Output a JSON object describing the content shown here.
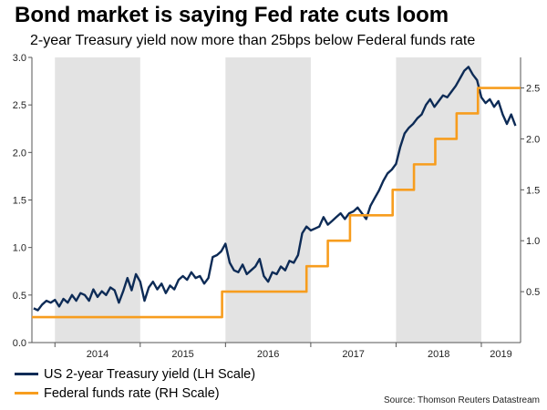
{
  "title": "Bond market is saying Fed rate cuts loom",
  "subtitle": "2-year Treasury yield now more than 25bps below Federal funds rate",
  "source": "Source: Thomson Reuters Datastream",
  "colors": {
    "yield": "#0d2b56",
    "fed": "#f79d1e",
    "shade": "#e3e3e3",
    "axis": "#555555"
  },
  "legend": [
    {
      "label": "US 2-year Treasury yield (LH Scale)",
      "series": "yield"
    },
    {
      "label": "Federal funds rate (RH Scale)",
      "series": "fed"
    }
  ],
  "chart_data": {
    "type": "line",
    "xlim": [
      2013.73,
      2019.46
    ],
    "ylim_left": [
      0,
      3.0
    ],
    "ylim_right": [
      0,
      2.8
    ],
    "yticks_left": [
      "0.0",
      "0.5",
      "1.0",
      "1.5",
      "2.0",
      "2.5",
      "3.0"
    ],
    "yticks_right": [
      "0.5",
      "1.0",
      "1.5",
      "2.0",
      "2.5"
    ],
    "year_labels": [
      "2014",
      "2015",
      "2016",
      "2017",
      "2018",
      "2019"
    ],
    "shaded_years": [
      2014,
      2016,
      2018
    ],
    "grid": false,
    "series": [
      {
        "name": "US 2-year Treasury yield (LH Scale)",
        "axis": "left",
        "x": [
          2013.75,
          2013.8,
          2013.85,
          2013.9,
          2013.95,
          2014.0,
          2014.05,
          2014.1,
          2014.15,
          2014.2,
          2014.25,
          2014.3,
          2014.35,
          2014.4,
          2014.45,
          2014.5,
          2014.55,
          2014.6,
          2014.65,
          2014.7,
          2014.75,
          2014.8,
          2014.85,
          2014.9,
          2014.95,
          2015.0,
          2015.05,
          2015.1,
          2015.15,
          2015.2,
          2015.25,
          2015.3,
          2015.35,
          2015.4,
          2015.45,
          2015.5,
          2015.55,
          2015.6,
          2015.65,
          2015.7,
          2015.75,
          2015.8,
          2015.85,
          2015.9,
          2015.95,
          2016.0,
          2016.05,
          2016.1,
          2016.15,
          2016.2,
          2016.25,
          2016.3,
          2016.35,
          2016.4,
          2016.45,
          2016.5,
          2016.55,
          2016.6,
          2016.65,
          2016.7,
          2016.75,
          2016.8,
          2016.85,
          2016.9,
          2016.95,
          2017.0,
          2017.05,
          2017.1,
          2017.15,
          2017.2,
          2017.25,
          2017.3,
          2017.35,
          2017.4,
          2017.45,
          2017.5,
          2017.55,
          2017.6,
          2017.65,
          2017.7,
          2017.75,
          2017.8,
          2017.85,
          2017.9,
          2017.95,
          2018.0,
          2018.05,
          2018.1,
          2018.15,
          2018.2,
          2018.25,
          2018.3,
          2018.35,
          2018.4,
          2018.45,
          2018.5,
          2018.55,
          2018.6,
          2018.65,
          2018.7,
          2018.75,
          2018.8,
          2018.85,
          2018.9,
          2018.95,
          2019.0,
          2019.05,
          2019.1,
          2019.15,
          2019.2,
          2019.25,
          2019.3,
          2019.35,
          2019.4
        ],
        "values": [
          0.36,
          0.34,
          0.4,
          0.44,
          0.42,
          0.45,
          0.38,
          0.46,
          0.42,
          0.5,
          0.44,
          0.52,
          0.5,
          0.44,
          0.56,
          0.48,
          0.54,
          0.5,
          0.58,
          0.55,
          0.42,
          0.54,
          0.68,
          0.55,
          0.72,
          0.64,
          0.44,
          0.58,
          0.64,
          0.56,
          0.62,
          0.52,
          0.6,
          0.56,
          0.66,
          0.7,
          0.66,
          0.74,
          0.68,
          0.7,
          0.62,
          0.68,
          0.9,
          0.92,
          0.96,
          1.04,
          0.84,
          0.76,
          0.74,
          0.82,
          0.72,
          0.76,
          0.8,
          0.88,
          0.7,
          0.64,
          0.74,
          0.72,
          0.8,
          0.76,
          0.86,
          0.84,
          0.92,
          1.15,
          1.22,
          1.18,
          1.2,
          1.22,
          1.32,
          1.24,
          1.28,
          1.32,
          1.36,
          1.3,
          1.36,
          1.38,
          1.42,
          1.36,
          1.3,
          1.44,
          1.52,
          1.6,
          1.7,
          1.78,
          1.82,
          1.88,
          2.06,
          2.2,
          2.26,
          2.3,
          2.36,
          2.4,
          2.5,
          2.56,
          2.48,
          2.54,
          2.6,
          2.58,
          2.64,
          2.7,
          2.78,
          2.86,
          2.9,
          2.82,
          2.76,
          2.58,
          2.52,
          2.56,
          2.48,
          2.54,
          2.4,
          2.3,
          2.4,
          2.28
        ],
        "color": "#0d2b56"
      },
      {
        "name": "Federal funds rate (RH Scale)",
        "axis": "right",
        "step": true,
        "x": [
          2013.73,
          2015.96,
          2016.95,
          2017.2,
          2017.46,
          2017.96,
          2018.21,
          2018.46,
          2018.71,
          2018.96,
          2019.46
        ],
        "values": [
          0.25,
          0.5,
          0.75,
          1.0,
          1.25,
          1.5,
          1.75,
          2.0,
          2.25,
          2.5,
          2.5
        ],
        "color": "#f79d1e"
      }
    ]
  }
}
